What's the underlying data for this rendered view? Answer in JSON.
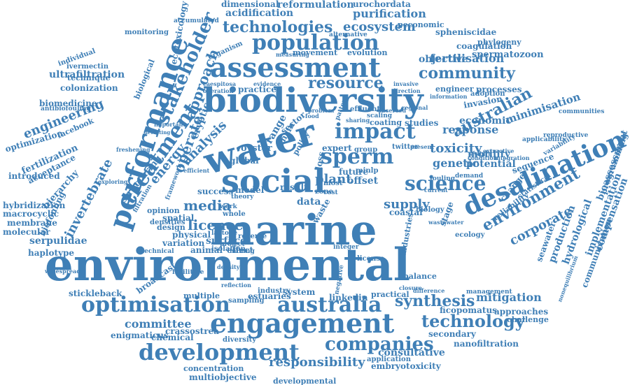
{
  "words": [
    {
      "text": "environmental",
      "accent": false
    },
    {
      "text": "marine",
      "accent": false
    },
    {
      "text": "biodiversity",
      "accent": false
    },
    {
      "text": "social",
      "accent": false
    },
    {
      "text": "water",
      "accent": false
    },
    {
      "text": "assessment",
      "accent": false
    },
    {
      "text": "performance",
      "accent": false
    },
    {
      "text": "desalination",
      "accent": false
    },
    {
      "text": "engagement",
      "accent": false
    },
    {
      "text": "science",
      "accent": false
    },
    {
      "text": "optimisation",
      "accent": false
    },
    {
      "text": "australia",
      "accent": false
    },
    {
      "text": "development",
      "accent": false
    },
    {
      "text": "population",
      "accent": false
    },
    {
      "text": "impact",
      "accent": false
    },
    {
      "text": "sperm",
      "accent": false
    },
    {
      "text": "treatment",
      "accent": false
    },
    {
      "text": "stakeholder",
      "accent": false
    },
    {
      "text": "environment",
      "accent": false
    },
    {
      "text": "australian",
      "accent": false
    },
    {
      "text": "companies",
      "accent": false
    },
    {
      "text": "community",
      "accent": false
    },
    {
      "text": "resource",
      "accent": false
    },
    {
      "text": "technologies",
      "accent": false
    },
    {
      "text": "technology",
      "accent": false
    },
    {
      "text": "synthesis",
      "accent": false
    },
    {
      "text": "responsibility",
      "accent": false
    },
    {
      "text": "engineering",
      "accent": false
    },
    {
      "text": "media",
      "accent": false
    },
    {
      "text": "licence",
      "accent": false
    },
    {
      "text": "supply",
      "accent": false
    },
    {
      "text": "genetic",
      "accent": false
    },
    {
      "text": "toxicity",
      "accent": false
    },
    {
      "text": "response",
      "accent": false
    },
    {
      "text": "economic",
      "accent": false
    },
    {
      "text": "invertebrate",
      "accent": false
    },
    {
      "text": "approach",
      "accent": false
    },
    {
      "text": "operate",
      "accent": false
    },
    {
      "text": "energy",
      "accent": false
    },
    {
      "text": "analysis",
      "accent": false
    },
    {
      "text": "corporate",
      "accent": false
    },
    {
      "text": "committee",
      "accent": false
    },
    {
      "text": "mitigation",
      "accent": false
    },
    {
      "text": "fertilisation",
      "accent": false
    },
    {
      "text": "ecosystem",
      "accent": false
    },
    {
      "text": "purification",
      "accent": false
    },
    {
      "text": "acidification",
      "accent": false
    },
    {
      "text": "reformulation",
      "accent": false
    },
    {
      "text": "dimensional",
      "accent": false
    },
    {
      "text": "urochordata",
      "accent": false
    },
    {
      "text": "objective",
      "accent": false
    },
    {
      "text": "spermatozoon",
      "accent": false
    },
    {
      "text": "coagulation",
      "accent": false
    },
    {
      "text": "spheniscidae",
      "accent": false
    },
    {
      "text": "phylogeny",
      "accent": false
    },
    {
      "text": "ultrafiltration",
      "accent": false
    },
    {
      "text": "colonization",
      "accent": false
    },
    {
      "text": "biomedicine",
      "accent": false
    },
    {
      "text": "ivermectin",
      "accent": false
    },
    {
      "text": "individual",
      "accent": false
    },
    {
      "text": "technique",
      "accent": false
    },
    {
      "text": "monitoring",
      "accent": false
    },
    {
      "text": "ecotoxicology",
      "accent": false
    },
    {
      "text": "biological",
      "accent": false
    },
    {
      "text": "organism",
      "accent": false
    },
    {
      "text": "minimisation",
      "accent": false
    },
    {
      "text": "invasion",
      "accent": false
    },
    {
      "text": "motility",
      "accent": false
    },
    {
      "text": "potential",
      "accent": false
    },
    {
      "text": "sequence",
      "accent": false
    },
    {
      "text": "processes",
      "accent": false
    },
    {
      "text": "engineer",
      "accent": false
    },
    {
      "text": "facebook",
      "accent": false
    },
    {
      "text": "optimization",
      "accent": false
    },
    {
      "text": "fertilization",
      "accent": false
    },
    {
      "text": "acceptance",
      "accent": false
    },
    {
      "text": "introduced",
      "accent": false
    },
    {
      "text": "hierarchy",
      "accent": false
    },
    {
      "text": "structuring",
      "accent": false
    },
    {
      "text": "hybridization",
      "accent": false
    },
    {
      "text": "macrocyclic",
      "accent": false
    },
    {
      "text": "membrane",
      "accent": false
    },
    {
      "text": "molecular",
      "accent": false
    },
    {
      "text": "biofouling",
      "accent": false
    },
    {
      "text": "serpulidae",
      "accent": false
    },
    {
      "text": "haplotype",
      "accent": false
    },
    {
      "text": "stickleback",
      "accent": false
    },
    {
      "text": "broadcast",
      "accent": false
    },
    {
      "text": "enigmaticus",
      "accent": false
    },
    {
      "text": "crassostrea",
      "accent": false
    },
    {
      "text": "chemical",
      "accent": false
    },
    {
      "text": "concentration",
      "accent": false
    },
    {
      "text": "multiobjective",
      "accent": false
    },
    {
      "text": "developmental",
      "accent": false
    },
    {
      "text": "consultative",
      "accent": false
    },
    {
      "text": "embryotoxicity",
      "accent": false
    },
    {
      "text": "nanofiltration",
      "accent": false
    },
    {
      "text": "secondary",
      "accent": false
    },
    {
      "text": "ficopomatus",
      "accent": false
    },
    {
      "text": "approaches",
      "accent": false
    },
    {
      "text": "challenge",
      "accent": false
    },
    {
      "text": "seawater",
      "accent": false
    },
    {
      "text": "production",
      "accent": false
    },
    {
      "text": "hydrological",
      "accent": false
    },
    {
      "text": "implementation",
      "accent": false
    },
    {
      "text": "compensation",
      "accent": false
    },
    {
      "text": "communication",
      "accent": false
    },
    {
      "text": "bioassessment",
      "accent": false
    },
    {
      "text": "programming",
      "accent": false
    },
    {
      "text": "reliability",
      "accent": false
    },
    {
      "text": "statistical",
      "accent": false
    },
    {
      "text": "change",
      "accent": false
    },
    {
      "text": "plant",
      "accent": false
    },
    {
      "text": "offset",
      "accent": false
    },
    {
      "text": "future",
      "accent": false
    },
    {
      "text": "coastal",
      "accent": false
    },
    {
      "text": "surface",
      "accent": false
    },
    {
      "text": "effect",
      "accent": false
    },
    {
      "text": "animal",
      "accent": false
    },
    {
      "text": "physical",
      "accent": false
    },
    {
      "text": "variation",
      "accent": false
    },
    {
      "text": "design",
      "accent": false
    },
    {
      "text": "spatial",
      "accent": false
    },
    {
      "text": "opinion",
      "accent": false
    },
    {
      "text": "model",
      "accent": false
    },
    {
      "text": "oyster",
      "accent": false
    },
    {
      "text": "sector",
      "accent": false
    },
    {
      "text": "studies",
      "accent": false
    },
    {
      "text": "coating",
      "accent": false
    },
    {
      "text": "result",
      "accent": false
    },
    {
      "text": "practice",
      "accent": false
    },
    {
      "text": "ecology",
      "accent": false
    },
    {
      "text": "data",
      "accent": false
    },
    {
      "text": "waste",
      "accent": false
    },
    {
      "text": "industries",
      "accent": false
    },
    {
      "text": "balance",
      "accent": false
    },
    {
      "text": "estuaries",
      "accent": false
    },
    {
      "text": "multiple",
      "accent": false
    },
    {
      "text": "linkedin",
      "accent": false
    },
    {
      "text": "practical",
      "accent": false
    },
    {
      "text": "system",
      "accent": false
    },
    {
      "text": "diversity",
      "accent": false
    },
    {
      "text": "expert",
      "accent": false
    },
    {
      "text": "twitter",
      "accent": false
    },
    {
      "text": "success",
      "accent": false
    },
    {
      "text": "range",
      "accent": false
    },
    {
      "text": "chain",
      "accent": false
    },
    {
      "text": "policy",
      "accent": false
    },
    {
      "text": "global",
      "accent": false
    },
    {
      "text": "loss",
      "accent": false
    },
    {
      "text": "cryptic",
      "accent": false
    },
    {
      "text": "movement",
      "accent": false
    },
    {
      "text": "evolution",
      "accent": false
    },
    {
      "text": "peconomic",
      "accent": false
    },
    {
      "text": "alternative",
      "accent": false
    },
    {
      "text": "adoption",
      "accent": false
    },
    {
      "text": "communities",
      "accent": false
    },
    {
      "text": "reproductive",
      "accent": false
    },
    {
      "text": "variability",
      "accent": false
    },
    {
      "text": "applicability",
      "accent": false
    },
    {
      "text": "isolation",
      "accent": false
    },
    {
      "text": "stage",
      "accent": false
    },
    {
      "text": "biology",
      "accent": false
    },
    {
      "text": "most",
      "accent": false
    },
    {
      "text": "group",
      "accent": false
    },
    {
      "text": "sharing",
      "accent": false
    },
    {
      "text": "antibiofouling",
      "accent": false
    },
    {
      "text": "accumulated",
      "accent": false
    },
    {
      "text": "filtration",
      "accent": false
    },
    {
      "text": "densities",
      "accent": false
    },
    {
      "text": "industry",
      "accent": false
    },
    {
      "text": "sampling",
      "accent": false
    },
    {
      "text": "management",
      "accent": false
    },
    {
      "text": "application",
      "accent": false
    },
    {
      "text": "integer",
      "accent": false
    },
    {
      "text": "license",
      "accent": false
    },
    {
      "text": "whole",
      "accent": false
    },
    {
      "text": "reverse",
      "accent": false
    },
    {
      "text": "project",
      "accent": false
    },
    {
      "text": "technical",
      "accent": false
    },
    {
      "text": "facilitate",
      "accent": false
    },
    {
      "text": "mining",
      "accent": false
    },
    {
      "text": "zone",
      "accent": false
    },
    {
      "text": "cost",
      "accent": false
    },
    {
      "text": "minlp",
      "accent": false
    },
    {
      "text": "effluent",
      "accent": false
    },
    {
      "text": "pattern",
      "accent": false
    },
    {
      "text": "caespitosa",
      "accent": false
    },
    {
      "text": "operation",
      "accent": false
    },
    {
      "text": "evidence",
      "accent": false
    },
    {
      "text": "theory",
      "accent": false
    },
    {
      "text": "direction",
      "accent": false
    },
    {
      "text": "invasive",
      "accent": false
    },
    {
      "text": "condition",
      "accent": false
    },
    {
      "text": "demand",
      "accent": false
    },
    {
      "text": "framework",
      "accent": false
    },
    {
      "text": "nonequilibrium",
      "accent": false
    },
    {
      "text": "seabird",
      "accent": false
    },
    {
      "text": "scaling",
      "accent": false
    },
    {
      "text": "fouling",
      "accent": false
    },
    {
      "text": "integration",
      "accent": false
    },
    {
      "text": "lactone",
      "accent": false
    },
    {
      "text": "density",
      "accent": false
    },
    {
      "text": "reflection",
      "accent": false
    },
    {
      "text": "widespread",
      "accent": false
    },
    {
      "text": "negative",
      "accent": false
    },
    {
      "text": "closure",
      "accent": false
    },
    {
      "text": "difference",
      "accent": false
    },
    {
      "text": "wastewater",
      "accent": false
    },
    {
      "text": "work",
      "accent": false
    },
    {
      "text": "present",
      "accent": false
    },
    {
      "text": "information",
      "accent": false
    },
    {
      "text": "measuring",
      "accent": false
    },
    {
      "text": "problem",
      "accent": false
    },
    {
      "text": "food",
      "accent": false
    },
    {
      "text": "important",
      "accent": false
    },
    {
      "text": "efficient",
      "accent": false
    },
    {
      "text": "freshening",
      "accent": false
    },
    {
      "text": "detecting",
      "accent": false
    },
    {
      "text": "exploring",
      "accent": false
    },
    {
      "text": "regional",
      "accent": false
    },
    {
      "text": "extractive",
      "accent": false
    },
    {
      "text": "observed",
      "accent": false
    },
    {
      "text": "current",
      "accent": false
    }
  ]
}
